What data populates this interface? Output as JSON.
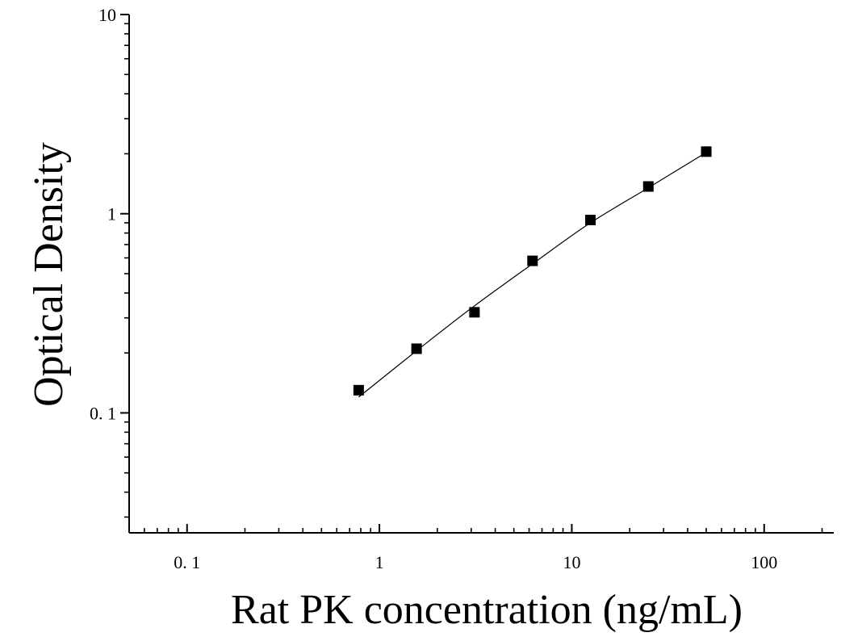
{
  "chart_data": {
    "type": "scatter",
    "title": "",
    "xlabel": "Rat PK concentration (ng/mL)",
    "ylabel": "Optical Density",
    "xscale": "log",
    "yscale": "log",
    "xlim": [
      0.05,
      230
    ],
    "ylim": [
      0.025,
      10
    ],
    "grid": false,
    "legend": "none",
    "x_ticks": [
      {
        "value": 0.1,
        "label": "0. 1"
      },
      {
        "value": 1,
        "label": "1"
      },
      {
        "value": 10,
        "label": "10"
      },
      {
        "value": 100,
        "label": "100"
      }
    ],
    "y_ticks": [
      {
        "value": 0.1,
        "label": "0. 1"
      },
      {
        "value": 1,
        "label": "1"
      },
      {
        "value": 10,
        "label": "10"
      }
    ],
    "series": [
      {
        "marker": "square",
        "color": "#000000",
        "points": [
          {
            "x": 0.78,
            "y": 0.13
          },
          {
            "x": 1.56,
            "y": 0.21
          },
          {
            "x": 3.12,
            "y": 0.32
          },
          {
            "x": 6.25,
            "y": 0.58
          },
          {
            "x": 12.5,
            "y": 0.93
          },
          {
            "x": 25,
            "y": 1.37
          },
          {
            "x": 50,
            "y": 2.05
          }
        ]
      }
    ],
    "fit_curve": {
      "color": "#000000",
      "points": [
        {
          "x": 0.78,
          "y": 0.12
        },
        {
          "x": 1.56,
          "y": 0.205
        },
        {
          "x": 3.12,
          "y": 0.345
        },
        {
          "x": 6.25,
          "y": 0.56
        },
        {
          "x": 12.5,
          "y": 0.9
        },
        {
          "x": 25,
          "y": 1.35
        },
        {
          "x": 50,
          "y": 2.03
        }
      ]
    }
  }
}
